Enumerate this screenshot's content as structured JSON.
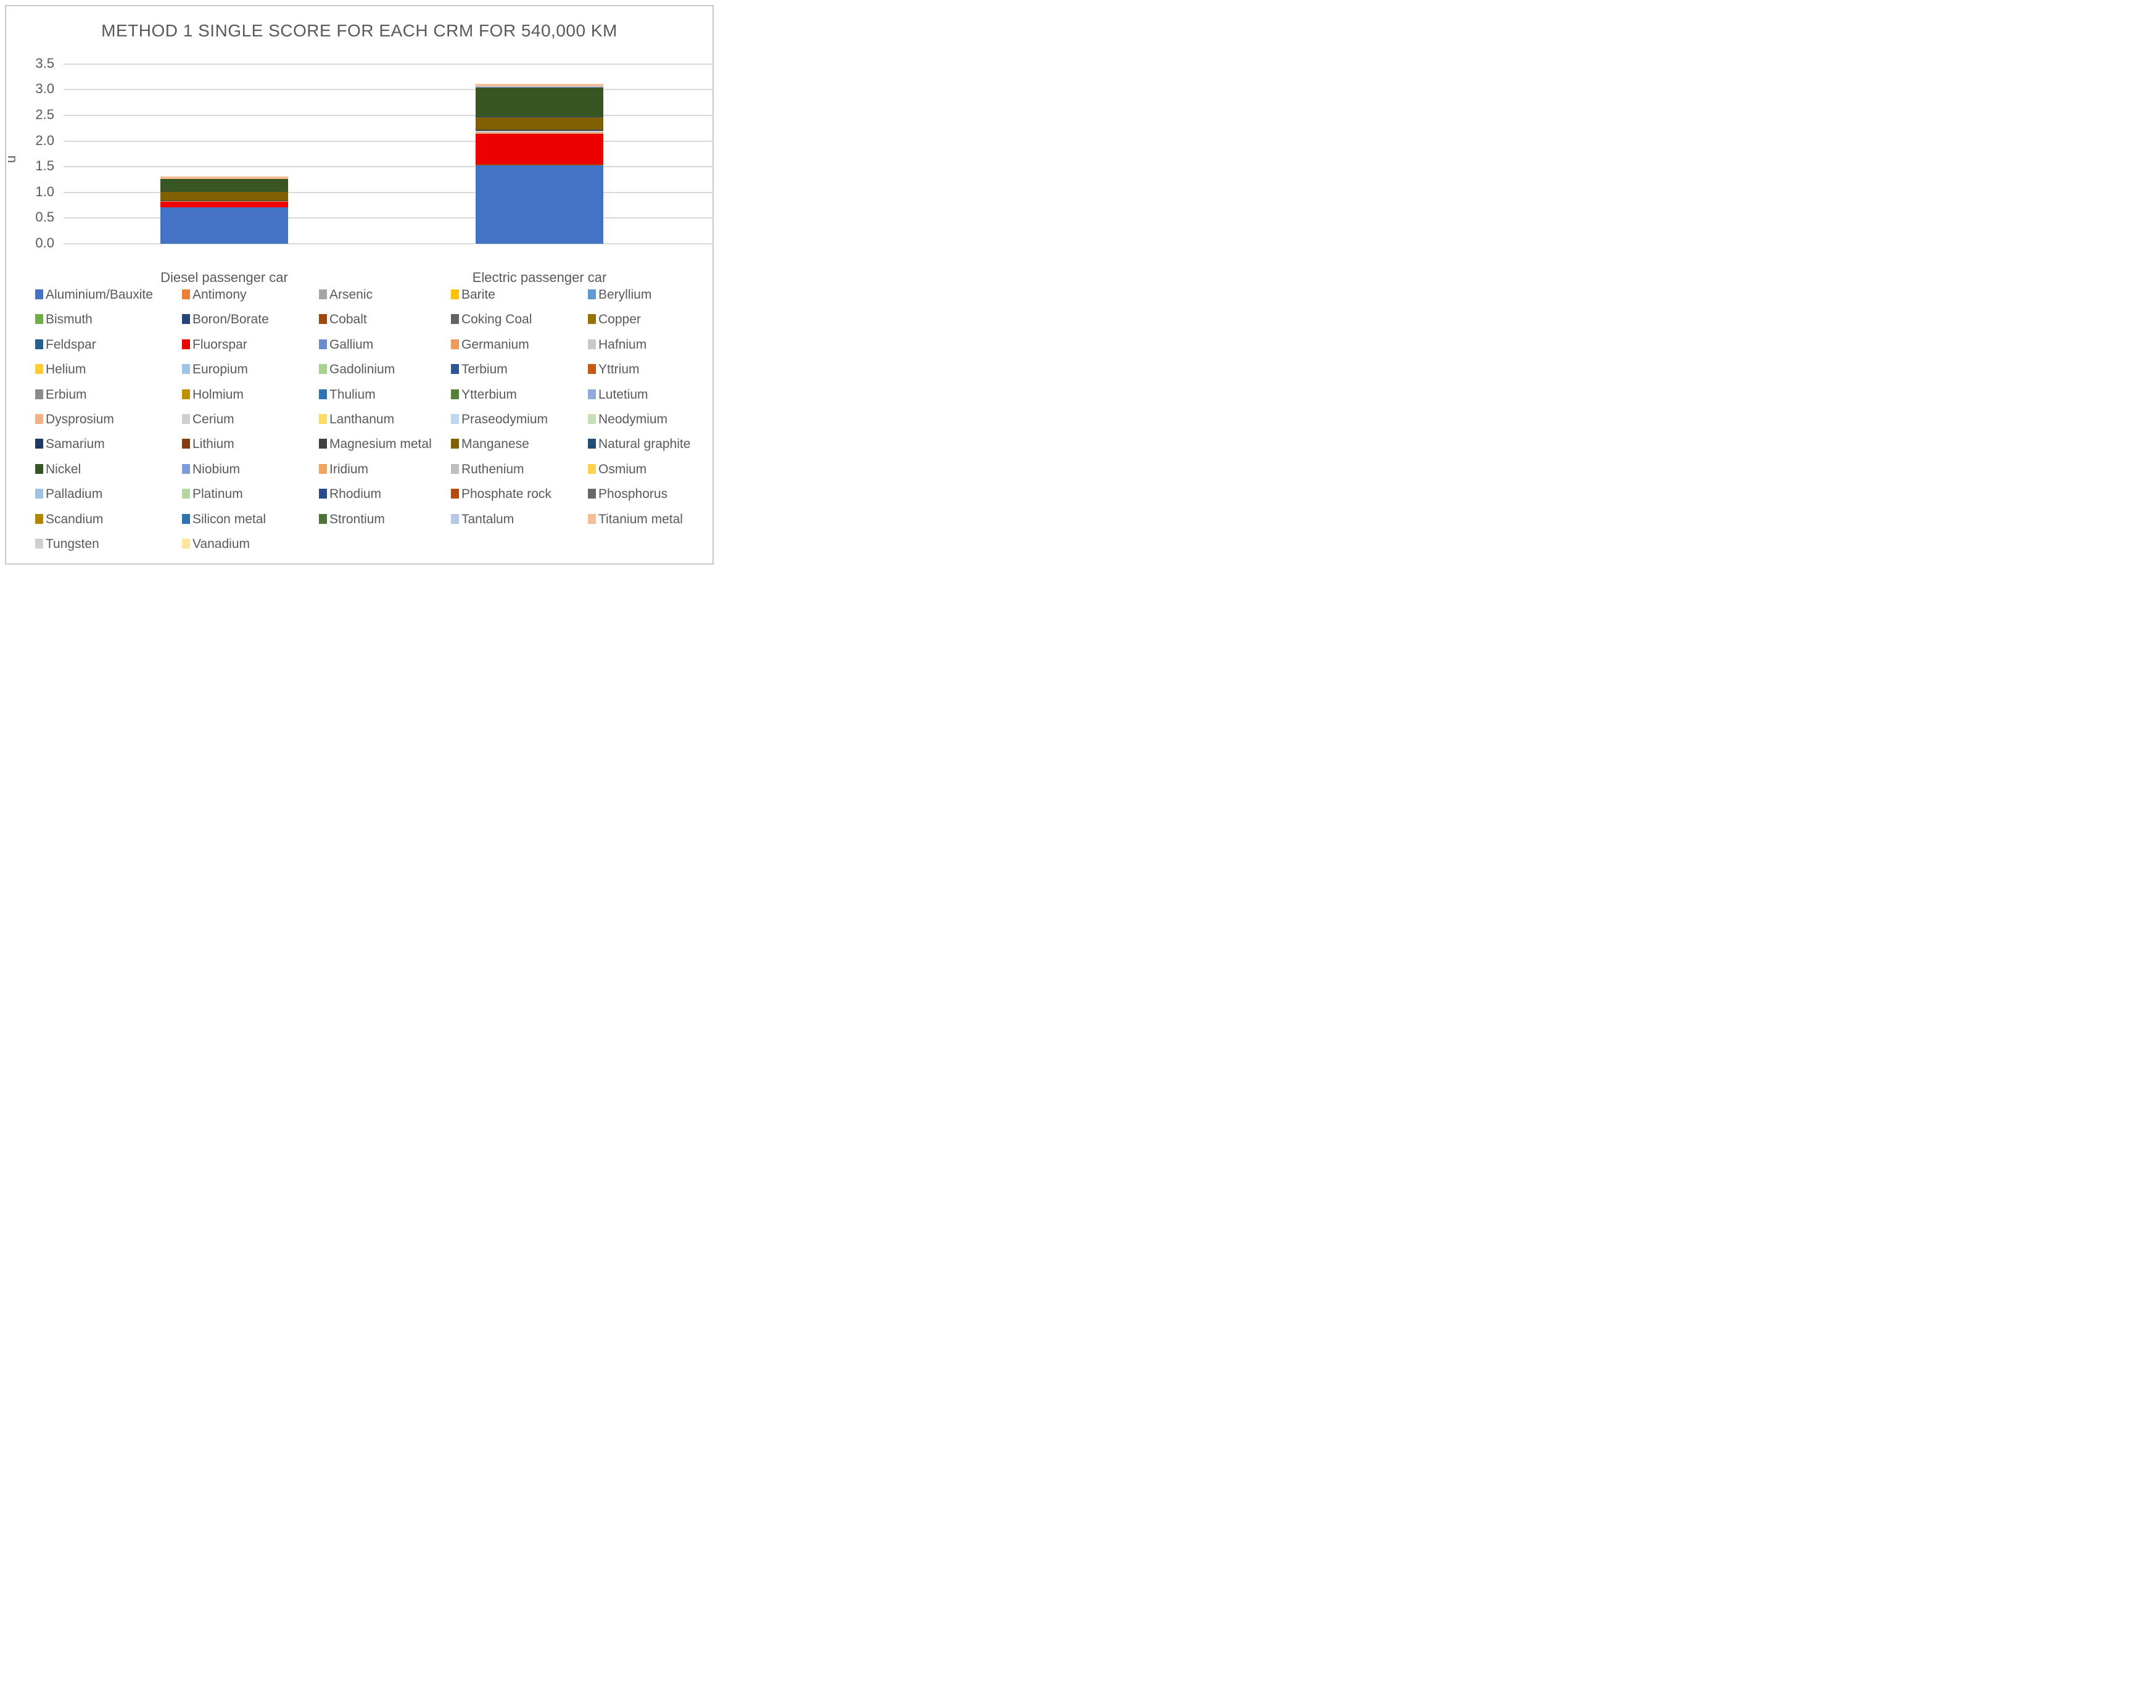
{
  "page": {
    "background": "#FFFFFF",
    "border_color": "#C9C9C9",
    "text_color": "#595959",
    "grid_color": "#D9D9D9"
  },
  "chart_data": {
    "type": "bar",
    "stacked": true,
    "title": "METHOD 1 SINGLE SCORE FOR EACH CRM FOR 540,000 KM",
    "xlabel": "",
    "ylabel": "u",
    "ylim": [
      0,
      3.5
    ],
    "ytick_labels": [
      "0.0",
      "0.5",
      "1.0",
      "1.5",
      "2.0",
      "2.5",
      "3.0",
      "3.5"
    ],
    "grid": true,
    "legend_position": "bottom",
    "categories": [
      "Diesel passenger car",
      "Electric passenger car"
    ],
    "category_totals": [
      1.31,
      3.11
    ],
    "series": [
      {
        "name": "Aluminium/Bauxite",
        "color": "#4472C4",
        "values": [
          0.71,
          1.53
        ]
      },
      {
        "name": "Antimony",
        "color": "#ED7D31",
        "values": [
          0,
          0
        ]
      },
      {
        "name": "Arsenic",
        "color": "#A5A5A5",
        "values": [
          0,
          0
        ]
      },
      {
        "name": "Barite",
        "color": "#FFC000",
        "values": [
          0,
          0
        ]
      },
      {
        "name": "Beryllium",
        "color": "#5B9BD5",
        "values": [
          0,
          0
        ]
      },
      {
        "name": "Bismuth",
        "color": "#70AD47",
        "values": [
          0,
          0
        ]
      },
      {
        "name": "Boron/Borate",
        "color": "#264478",
        "values": [
          0,
          0
        ]
      },
      {
        "name": "Cobalt",
        "color": "#9E480E",
        "values": [
          0,
          0.025
        ]
      },
      {
        "name": "Coking Coal",
        "color": "#636363",
        "values": [
          0,
          0
        ]
      },
      {
        "name": "Copper",
        "color": "#997300",
        "values": [
          0,
          0
        ]
      },
      {
        "name": "Feldspar",
        "color": "#255E91",
        "values": [
          0,
          0
        ]
      },
      {
        "name": "Fluorspar",
        "color": "#EE0000",
        "values": [
          0.11,
          0.59
        ]
      },
      {
        "name": "Gallium",
        "color": "#698ED0",
        "values": [
          0,
          0
        ]
      },
      {
        "name": "Germanium",
        "color": "#F1975A",
        "values": [
          0.005,
          0.015
        ]
      },
      {
        "name": "Hafnium",
        "color": "#C9C9C9",
        "values": [
          0.015,
          0.045
        ]
      },
      {
        "name": "Helium",
        "color": "#FFCD33",
        "values": [
          0,
          0
        ]
      },
      {
        "name": "Europium",
        "color": "#9DC3E6",
        "values": [
          0,
          0
        ]
      },
      {
        "name": "Gadolinium",
        "color": "#A9D18E",
        "values": [
          0,
          0
        ]
      },
      {
        "name": "Terbium",
        "color": "#2F5597",
        "values": [
          0,
          0
        ]
      },
      {
        "name": "Yttrium",
        "color": "#C55A11",
        "values": [
          0,
          0
        ]
      },
      {
        "name": "Erbium",
        "color": "#8A8A8A",
        "values": [
          0,
          0
        ]
      },
      {
        "name": "Holmium",
        "color": "#BF8F00",
        "values": [
          0,
          0
        ]
      },
      {
        "name": "Thulium",
        "color": "#2E75B6",
        "values": [
          0,
          0
        ]
      },
      {
        "name": "Ytterbium",
        "color": "#548235",
        "values": [
          0,
          0
        ]
      },
      {
        "name": "Lutetium",
        "color": "#8FAADC",
        "values": [
          0,
          0
        ]
      },
      {
        "name": "Dysprosium",
        "color": "#F4B183",
        "values": [
          0,
          0
        ]
      },
      {
        "name": "Cerium",
        "color": "#D0CECE",
        "values": [
          0,
          0
        ]
      },
      {
        "name": "Lanthanum",
        "color": "#FFD966",
        "values": [
          0,
          0
        ]
      },
      {
        "name": "Praseodymium",
        "color": "#BDD7EE",
        "values": [
          0,
          0
        ]
      },
      {
        "name": "Neodymium",
        "color": "#C5E0B4",
        "values": [
          0,
          0
        ]
      },
      {
        "name": "Samarium",
        "color": "#203864",
        "values": [
          0,
          0
        ]
      },
      {
        "name": "Lithium",
        "color": "#843C0C",
        "values": [
          0,
          0
        ]
      },
      {
        "name": "Magnesium metal",
        "color": "#404040",
        "values": [
          0.005,
          0.015
        ]
      },
      {
        "name": "Manganese",
        "color": "#806000",
        "values": [
          0.17,
          0.24
        ]
      },
      {
        "name": "Natural graphite",
        "color": "#1F4E79",
        "values": [
          0,
          0.01
        ]
      },
      {
        "name": "Nickel",
        "color": "#375623",
        "values": [
          0.25,
          0.58
        ]
      },
      {
        "name": "Niobium",
        "color": "#7F9CD8",
        "values": [
          0,
          0.008
        ]
      },
      {
        "name": "Iridium",
        "color": "#F2A45F",
        "values": [
          0,
          0
        ]
      },
      {
        "name": "Ruthenium",
        "color": "#BFBFBF",
        "values": [
          0,
          0
        ]
      },
      {
        "name": "Osmium",
        "color": "#FFD34D",
        "values": [
          0,
          0
        ]
      },
      {
        "name": "Palladium",
        "color": "#9CC2E5",
        "values": [
          0,
          0
        ]
      },
      {
        "name": "Platinum",
        "color": "#B4D79E",
        "values": [
          0,
          0
        ]
      },
      {
        "name": "Rhodium",
        "color": "#2B4A8B",
        "values": [
          0,
          0
        ]
      },
      {
        "name": "Phosphate rock",
        "color": "#B5490F",
        "values": [
          0,
          0
        ]
      },
      {
        "name": "Phosphorus",
        "color": "#696969",
        "values": [
          0,
          0
        ]
      },
      {
        "name": "Scandium",
        "color": "#B38600",
        "values": [
          0,
          0
        ]
      },
      {
        "name": "Silicon metal",
        "color": "#2C73B4",
        "values": [
          0,
          0
        ]
      },
      {
        "name": "Strontium",
        "color": "#4C7335",
        "values": [
          0,
          0
        ]
      },
      {
        "name": "Tantalum",
        "color": "#B4C7E7",
        "values": [
          0,
          0.01
        ]
      },
      {
        "name": "Titanium metal",
        "color": "#F5BD94",
        "values": [
          0.045,
          0.045
        ]
      },
      {
        "name": "Tungsten",
        "color": "#D0CECE",
        "values": [
          0,
          0
        ]
      },
      {
        "name": "Vanadium",
        "color": "#FFE699",
        "values": [
          0,
          0
        ]
      }
    ]
  }
}
